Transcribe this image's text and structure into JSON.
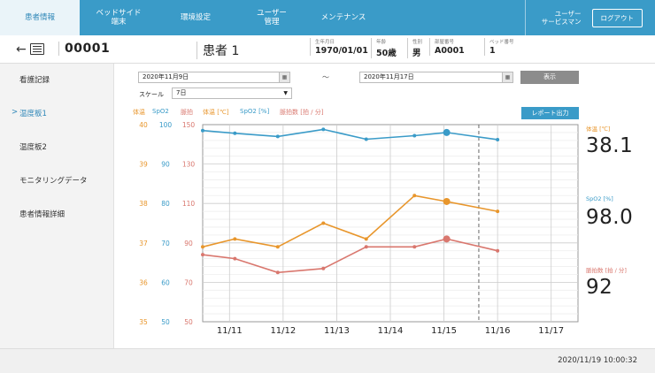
{
  "nav": {
    "tabs": [
      {
        "label": "患者情報",
        "active": true
      },
      {
        "label": "ベッドサイド\n端末",
        "active": false
      },
      {
        "label": "環境設定",
        "active": false
      },
      {
        "label": "ユーザー\n管理",
        "active": false
      },
      {
        "label": "メンテナンス",
        "active": false
      }
    ],
    "user": "ユーザー\nサービスマン",
    "logout_label": "ログアウト"
  },
  "patient": {
    "id": "00001",
    "name": "患者 1",
    "fields": [
      {
        "label": "生年月日",
        "value": "1970/01/01"
      },
      {
        "label": "年齢",
        "value": "50歳"
      },
      {
        "label": "性別",
        "value": "男"
      },
      {
        "label": "部屋番号",
        "value": "A0001"
      },
      {
        "label": "ベッド番号",
        "value": "1"
      }
    ]
  },
  "sidebar": {
    "items": [
      {
        "label": "看護記録",
        "active": false
      },
      {
        "label": "温度板1",
        "active": true
      },
      {
        "label": "温度板2",
        "active": false
      },
      {
        "label": "モニタリングデータ",
        "active": false
      },
      {
        "label": "患者情報詳細",
        "active": false
      }
    ],
    "active_marker": ">"
  },
  "filters": {
    "date_from": "2020年11月9日",
    "date_to": "2020年11月17日",
    "tilde": "～",
    "show_label": "表示",
    "scale_label": "スケール",
    "scale_value": "7日",
    "report_label": "レポート出力"
  },
  "colors": {
    "temp": "#e8962c",
    "spo2": "#3a9bc8",
    "pulse": "#d9776e",
    "accent": "#3a9bc8"
  },
  "legend": {
    "temp_short": "体温",
    "spo2_short": "SpO2",
    "pulse_short": "脈拍",
    "temp_unit": "体温 [℃]",
    "spo2_unit": "SpO2 [%]",
    "pulse_unit": "脈拍数 [拍 / 分]"
  },
  "current": {
    "temp_label": "体温 [℃]",
    "temp_value": "38.1",
    "spo2_label": "SpO2 [%]",
    "spo2_value": "98.0",
    "pulse_label": "脈拍数 [拍 / 分]",
    "pulse_value": "92"
  },
  "chart_data": {
    "type": "line",
    "x_ticks": [
      "11/11",
      "11/12",
      "11/13",
      "11/14",
      "11/15",
      "11/16",
      "11/17"
    ],
    "x_range": [
      10.5,
      17.5
    ],
    "x": [
      10.5,
      11.1,
      11.9,
      12.75,
      13.55,
      14.45,
      15.05,
      16.0
    ],
    "cursor_x": 15.65,
    "axes": [
      {
        "name": "体温",
        "ticks": [
          "40",
          "39",
          "38",
          "37",
          "36",
          "35"
        ],
        "range": [
          35,
          40
        ]
      },
      {
        "name": "SpO2",
        "ticks": [
          "100",
          "90",
          "80",
          "70",
          "60",
          "50"
        ],
        "range": [
          50,
          100
        ]
      },
      {
        "name": "脈拍",
        "ticks": [
          "150",
          "130",
          "110",
          "90",
          "70",
          "50"
        ],
        "range": [
          50,
          150
        ]
      }
    ],
    "series": [
      {
        "name": "SpO2",
        "axis": 1,
        "values": [
          98.5,
          97.8,
          97.0,
          98.8,
          96.3,
          97.2,
          98.0,
          96.2
        ]
      },
      {
        "name": "体温",
        "axis": 0,
        "values": [
          36.9,
          37.1,
          36.9,
          37.5,
          37.1,
          38.2,
          38.05,
          37.8
        ]
      },
      {
        "name": "脈拍",
        "axis": 2,
        "values": [
          84,
          82,
          75,
          77,
          88,
          88,
          92,
          86
        ]
      }
    ]
  },
  "timestamp": "2020/11/19 10:00:32"
}
